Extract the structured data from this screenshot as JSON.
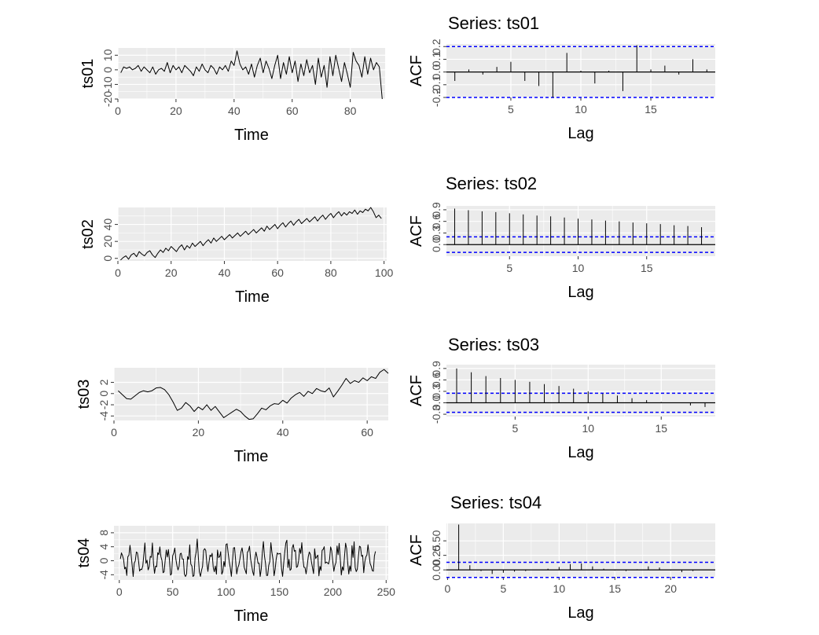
{
  "figure": {
    "background": "#ffffff",
    "panel_background": "#ebebeb",
    "grid_color": "#ffffff",
    "line_color": "#000000",
    "ci_color": "#0000ff"
  },
  "chart_data": [
    {
      "type": "line",
      "series_name": "ts01",
      "ylabel": "ts01",
      "xlabel": "Time",
      "xlim": [
        0,
        92
      ],
      "ylim": [
        -20,
        15
      ],
      "x_ticks": [
        0,
        20,
        40,
        60,
        80
      ],
      "y_ticks": [
        -20,
        -10,
        0,
        10
      ],
      "y_ticks_minor": [
        -15,
        -5,
        5
      ],
      "x_start": 1,
      "values": [
        -2,
        2,
        1,
        2,
        0,
        1,
        3,
        -1,
        2,
        0,
        -2,
        2,
        -3,
        0,
        1,
        -1,
        5,
        -2,
        3,
        0,
        2,
        -2,
        3,
        1,
        -1,
        -4,
        2,
        -1,
        4,
        0,
        -2,
        3,
        1,
        -3,
        2,
        0,
        3,
        -1,
        6,
        3,
        13,
        4,
        0,
        2,
        -3,
        4,
        -5,
        3,
        8,
        -2,
        6,
        1,
        -6,
        3,
        10,
        -6,
        5,
        -3,
        9,
        -2,
        6,
        -8,
        4,
        -4,
        7,
        -2,
        3,
        -10,
        8,
        -5,
        3,
        -12,
        9,
        -4,
        10,
        1,
        -8,
        5,
        -3,
        -12,
        12,
        6,
        3,
        -5,
        9,
        -3,
        8,
        0,
        5,
        2,
        -20
      ],
      "grid": true
    },
    {
      "type": "bar",
      "title": "Series: ts01",
      "ylabel": "ACF",
      "xlabel": "Lag",
      "xlim": [
        0.4,
        19.6
      ],
      "ylim": [
        -0.2,
        0.22
      ],
      "x_ticks": [
        5,
        10,
        15
      ],
      "y_ticks": [
        -0.2,
        -0.1,
        0.0,
        0.1,
        0.2
      ],
      "y_tick_labels": [
        "-0.2",
        "-0.1",
        "0.0",
        "0.1",
        "0.2"
      ],
      "lags": [
        1,
        2,
        3,
        4,
        5,
        6,
        7,
        8,
        9,
        10,
        11,
        12,
        13,
        14,
        15,
        16,
        17,
        18,
        19
      ],
      "acf": [
        -0.07,
        0.02,
        -0.02,
        0.04,
        0.08,
        -0.07,
        -0.11,
        -0.2,
        0.15,
        0.01,
        -0.09,
        0.01,
        -0.15,
        0.21,
        0.02,
        0.05,
        -0.02,
        0.1,
        0.02
      ],
      "ci": 0.2,
      "grid": true
    },
    {
      "type": "line",
      "series_name": "ts02",
      "ylabel": "ts02",
      "xlabel": "Time",
      "xlim": [
        0,
        101
      ],
      "ylim": [
        -3,
        60
      ],
      "x_ticks": [
        0,
        20,
        40,
        60,
        80,
        100
      ],
      "y_ticks": [
        0,
        20,
        40
      ],
      "y_ticks_minor": [
        10,
        30,
        50
      ],
      "x_start": 1,
      "values": [
        -2,
        1,
        3,
        -1,
        4,
        6,
        2,
        8,
        5,
        3,
        7,
        9,
        4,
        1,
        6,
        10,
        7,
        12,
        9,
        14,
        11,
        8,
        13,
        16,
        10,
        15,
        12,
        18,
        14,
        17,
        20,
        15,
        19,
        22,
        18,
        24,
        20,
        23,
        26,
        22,
        25,
        28,
        24,
        27,
        30,
        26,
        29,
        32,
        28,
        31,
        34,
        30,
        33,
        36,
        32,
        38,
        34,
        37,
        40,
        35,
        39,
        42,
        37,
        41,
        44,
        39,
        43,
        46,
        41,
        44,
        47,
        43,
        46,
        49,
        44,
        48,
        51,
        46,
        50,
        53,
        48,
        52,
        55,
        50,
        54,
        51,
        55,
        53,
        57,
        52,
        56,
        54,
        58,
        56,
        60,
        55,
        48,
        51,
        47
      ],
      "grid": true
    },
    {
      "type": "bar",
      "title": "Series: ts02",
      "ylabel": "ACF",
      "xlabel": "Lag",
      "xlim": [
        0.4,
        20.0
      ],
      "ylim": [
        -0.3,
        1.0
      ],
      "x_ticks": [
        5,
        10,
        15
      ],
      "y_ticks": [
        0.0,
        0.3,
        0.6,
        0.9
      ],
      "y_tick_labels": [
        "0.0",
        "0.3",
        "0.6",
        "0.9"
      ],
      "lags": [
        1,
        2,
        3,
        4,
        5,
        6,
        7,
        8,
        9,
        10,
        11,
        12,
        13,
        14,
        15,
        16,
        17,
        18,
        19
      ],
      "acf": [
        0.93,
        0.89,
        0.86,
        0.84,
        0.81,
        0.78,
        0.75,
        0.73,
        0.7,
        0.67,
        0.65,
        0.62,
        0.6,
        0.57,
        0.55,
        0.53,
        0.5,
        0.48,
        0.45
      ],
      "ci": 0.2,
      "grid": true
    },
    {
      "type": "line",
      "series_name": "ts03",
      "ylabel": "ts03",
      "xlabel": "Time",
      "xlim": [
        0,
        65
      ],
      "ylim": [
        -4.8,
        4.6
      ],
      "x_ticks": [
        0,
        20,
        40,
        60
      ],
      "y_ticks": [
        -4,
        -2,
        0,
        2
      ],
      "y_tick_labels": [
        "-4",
        "-2",
        "0",
        "2"
      ],
      "x_start": 1,
      "values": [
        0.5,
        -0.2,
        -0.9,
        -1.0,
        -0.4,
        0.2,
        0.5,
        0.3,
        0.5,
        1.0,
        1.1,
        0.7,
        -0.2,
        -1.5,
        -3.0,
        -2.6,
        -1.6,
        -2.2,
        -3.2,
        -2.4,
        -2.9,
        -2.0,
        -3.0,
        -2.3,
        -3.3,
        -4.3,
        -3.8,
        -3.3,
        -2.8,
        -3.2,
        -4.0,
        -4.6,
        -4.5,
        -3.6,
        -2.6,
        -2.9,
        -2.2,
        -1.8,
        -1.9,
        -1.2,
        -1.7,
        -0.8,
        -0.2,
        0.2,
        -0.5,
        0.4,
        0.0,
        0.9,
        0.5,
        0.3,
        1.0,
        -0.6,
        0.4,
        1.5,
        2.7,
        1.8,
        2.3,
        2.0,
        2.8,
        2.3,
        3.0,
        2.7,
        3.8,
        4.3,
        3.6
      ],
      "grid": true
    },
    {
      "type": "bar",
      "title": "Series: ts03",
      "ylabel": "ACF",
      "xlabel": "Lag",
      "xlim": [
        0.3,
        18.7
      ],
      "ylim": [
        -0.36,
        1.0
      ],
      "x_ticks": [
        5,
        10,
        15
      ],
      "y_ticks": [
        -0.3,
        0.0,
        0.3,
        0.6,
        0.9
      ],
      "y_tick_labels": [
        "-0.3",
        "0.0",
        "0.3",
        "0.6",
        "0.9"
      ],
      "lags": [
        1,
        2,
        3,
        4,
        5,
        6,
        7,
        8,
        9,
        10,
        11,
        12,
        13,
        14,
        15,
        16,
        17,
        18
      ],
      "acf": [
        0.9,
        0.8,
        0.7,
        0.65,
        0.6,
        0.55,
        0.49,
        0.44,
        0.37,
        0.3,
        0.24,
        0.19,
        0.12,
        0.07,
        0.02,
        -0.01,
        -0.07,
        -0.11
      ],
      "ci": 0.25,
      "grid": true
    },
    {
      "type": "line",
      "series_name": "ts04",
      "ylabel": "ts04",
      "xlabel": "Time",
      "xlim": [
        -5,
        252
      ],
      "ylim": [
        -5.5,
        10
      ],
      "x_ticks": [
        0,
        50,
        100,
        150,
        200,
        250
      ],
      "y_ticks": [
        -4,
        0,
        4,
        8
      ],
      "y_ticks_minor": [
        -2,
        2,
        6
      ],
      "x_start": 1,
      "series_length": 240,
      "generator": {
        "amp": 3.2,
        "seed": 17
      },
      "grid": true
    },
    {
      "type": "bar",
      "title": "Series: ts04",
      "ylabel": "ACF",
      "xlabel": "Lag",
      "xlim": [
        -0.1,
        24.0
      ],
      "ylim": [
        -0.12,
        0.8
      ],
      "x_ticks": [
        0,
        5,
        10,
        15,
        20
      ],
      "y_ticks": [
        0.0,
        0.25,
        0.5
      ],
      "y_tick_labels": [
        "0.00",
        "0.25",
        "0.50"
      ],
      "lags": [
        0,
        1,
        2,
        3,
        4,
        5,
        6,
        7,
        8,
        9,
        10,
        11,
        12,
        13,
        14,
        15,
        16,
        17,
        18,
        19,
        20,
        21,
        22,
        23
      ],
      "acf": [
        0,
        0.78,
        0.08,
        -0.02,
        -0.07,
        -0.05,
        -0.03,
        -0.02,
        0.0,
        0.02,
        0.05,
        0.1,
        0.11,
        0.06,
        0.02,
        -0.01,
        -0.02,
        0.01,
        0.06,
        0.04,
        -0.01,
        -0.04,
        -0.02,
        0.0
      ],
      "ci": 0.13,
      "grid": true
    }
  ]
}
